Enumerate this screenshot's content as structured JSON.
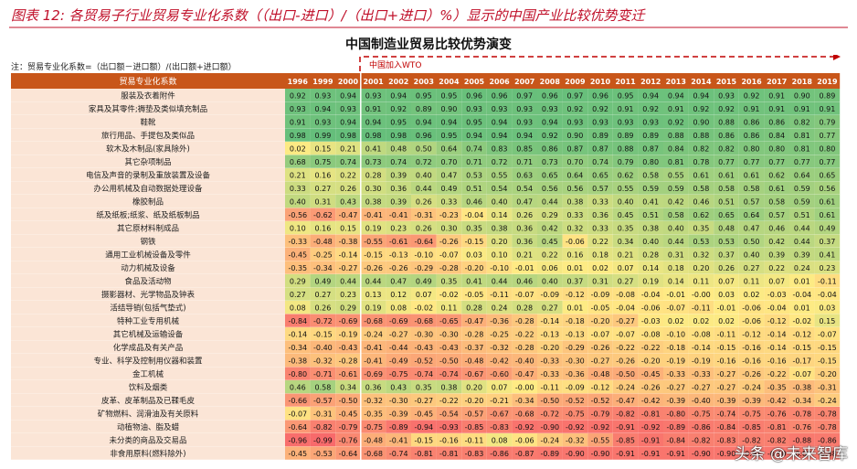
{
  "header": {
    "title": "图表 12: 各贸易子行业贸易专业化系数（（出口-进口）/（出口+进口）%）显示的中国产业比较优势变迁",
    "title_color": "#c0102a"
  },
  "chart_data": {
    "type": "heatmap",
    "title": "中国制造业贸易比较优势演变",
    "note": "注：贸易专业化系数=（出口额－进口额）/(出口额+进口额）",
    "annotation": "中国加入WTO",
    "row_header": "贸易专业化系数",
    "years": [
      "1996",
      "1999",
      "2000",
      "2001",
      "2002",
      "2003",
      "2004",
      "2005",
      "2006",
      "2007",
      "2008",
      "2009",
      "2010",
      "2011",
      "2012",
      "2013",
      "2014",
      "2015",
      "2016",
      "2017",
      "2018",
      "2019"
    ],
    "colors": {
      "low": "#f8696b",
      "mid": "#ffeb84",
      "high": "#63be7b",
      "header_bg": "#c8561a"
    },
    "rows": [
      {
        "name": "服装及衣着附件",
        "values": [
          "0.92",
          "0.93",
          "0.94",
          "0.93",
          "0.94",
          "0.95",
          "0.95",
          "0.96",
          "0.96",
          "0.97",
          "0.96",
          "0.97",
          "0.96",
          "0.95",
          "0.94",
          "0.94",
          "0.94",
          "0.93",
          "0.92",
          "0.91",
          "0.90",
          "0.89"
        ]
      },
      {
        "name": "家具及其零件;褥垫及类似填充制品",
        "values": [
          "0.93",
          "0.94",
          "0.93",
          "0.91",
          "0.92",
          "0.89",
          "0.90",
          "0.93",
          "0.93",
          "0.93",
          "0.93",
          "0.92",
          "0.92",
          "0.91",
          "0.92",
          "0.91",
          "0.92",
          "0.92",
          "0.91",
          "0.91",
          "0.91",
          "0.91"
        ]
      },
      {
        "name": "鞋靴",
        "values": [
          "0.91",
          "0.93",
          "0.94",
          "0.94",
          "0.95",
          "0.94",
          "0.94",
          "0.95",
          "0.94",
          "0.93",
          "0.94",
          "0.93",
          "0.93",
          "0.93",
          "0.93",
          "0.92",
          "0.90",
          "0.88",
          "0.86",
          "0.86",
          "0.82",
          "0.79"
        ]
      },
      {
        "name": "旅行用品、手提包及类似品",
        "values": [
          "0.98",
          "0.99",
          "0.98",
          "0.98",
          "0.98",
          "0.96",
          "0.95",
          "0.94",
          "0.94",
          "0.94",
          "0.92",
          "0.90",
          "0.89",
          "0.89",
          "0.89",
          "0.88",
          "0.88",
          "0.86",
          "0.86",
          "0.84",
          "0.81",
          "0.77"
        ]
      },
      {
        "name": "软木及木制品(家具除外)",
        "values": [
          "0.02",
          "0.15",
          "0.21",
          "0.41",
          "0.48",
          "0.50",
          "0.64",
          "0.74",
          "0.83",
          "0.85",
          "0.86",
          "0.87",
          "0.87",
          "0.88",
          "0.87",
          "0.84",
          "0.82",
          "0.82",
          "0.80",
          "0.80",
          "0.81",
          "0.80"
        ]
      },
      {
        "name": "其它杂项制品",
        "values": [
          "0.68",
          "0.75",
          "0.74",
          "0.73",
          "0.74",
          "0.72",
          "0.70",
          "0.71",
          "0.72",
          "0.71",
          "0.73",
          "0.70",
          "0.74",
          "0.79",
          "0.80",
          "0.81",
          "0.78",
          "0.77",
          "0.77",
          "0.77",
          "0.77",
          "0.77"
        ]
      },
      {
        "name": "电信及声音的录制及重放装置及设备",
        "values": [
          "0.21",
          "0.16",
          "0.22",
          "0.28",
          "0.39",
          "0.40",
          "0.47",
          "0.53",
          "0.55",
          "0.63",
          "0.65",
          "0.64",
          "0.65",
          "0.62",
          "0.58",
          "0.55",
          "0.61",
          "0.61",
          "0.61",
          "0.62",
          "0.64",
          "0.65"
        ]
      },
      {
        "name": "办公用机械及自动数据处理设备",
        "values": [
          "0.33",
          "0.27",
          "0.26",
          "0.30",
          "0.36",
          "0.44",
          "0.49",
          "0.51",
          "0.54",
          "0.54",
          "0.56",
          "0.56",
          "0.57",
          "0.55",
          "0.59",
          "0.59",
          "0.58",
          "0.58",
          "0.58",
          "0.61",
          "0.59",
          "0.56"
        ]
      },
      {
        "name": "橡胶制品",
        "values": [
          "0.40",
          "0.31",
          "0.43",
          "0.38",
          "0.39",
          "0.26",
          "0.33",
          "0.46",
          "0.40",
          "0.47",
          "0.44",
          "0.38",
          "0.33",
          "0.40",
          "0.41",
          "0.42",
          "0.46",
          "0.51",
          "0.57",
          "0.58",
          "0.59",
          "0.61"
        ]
      },
      {
        "name": "纸及纸板;纸浆、纸及纸板制品",
        "values": [
          "-0.56",
          "-0.62",
          "-0.47",
          "-0.41",
          "-0.41",
          "-0.31",
          "-0.23",
          "-0.04",
          "0.14",
          "0.26",
          "0.29",
          "0.33",
          "0.36",
          "0.45",
          "0.51",
          "0.58",
          "0.62",
          "0.65",
          "0.64",
          "0.57",
          "0.51",
          "0.61"
        ]
      },
      {
        "name": "其它原材料制成品",
        "values": [
          "0.10",
          "0.16",
          "0.15",
          "0.19",
          "0.23",
          "0.26",
          "0.30",
          "0.35",
          "0.38",
          "0.36",
          "0.42",
          "0.32",
          "0.33",
          "0.35",
          "0.38",
          "0.40",
          "0.35",
          "0.48",
          "0.47",
          "0.46",
          "0.44",
          "0.49"
        ]
      },
      {
        "name": "钢铁",
        "values": [
          "-0.33",
          "-0.48",
          "-0.38",
          "-0.55",
          "-0.61",
          "-0.64",
          "-0.26",
          "-0.15",
          "0.20",
          "0.36",
          "0.45",
          "-0.06",
          "0.22",
          "0.34",
          "0.40",
          "0.44",
          "0.53",
          "0.53",
          "0.50",
          "0.42",
          "0.44",
          "0.37"
        ]
      },
      {
        "name": "通用工业机械设备及零件",
        "values": [
          "-0.45",
          "-0.25",
          "-0.14",
          "-0.15",
          "-0.13",
          "-0.10",
          "-0.07",
          "0.03",
          "0.10",
          "0.21",
          "0.22",
          "0.16",
          "0.18",
          "0.21",
          "0.28",
          "0.31",
          "0.32",
          "0.37",
          "0.40",
          "0.39",
          "0.39",
          "0.41"
        ]
      },
      {
        "name": "动力机械及设备",
        "values": [
          "-0.35",
          "-0.34",
          "-0.27",
          "-0.26",
          "-0.26",
          "-0.29",
          "-0.28",
          "-0.20",
          "-0.10",
          "-0.01",
          "0.06",
          "0.01",
          "0.02",
          "0.07",
          "0.14",
          "0.18",
          "0.20",
          "0.26",
          "0.27",
          "0.22",
          "0.24",
          "0.23"
        ]
      },
      {
        "name": "食品及活动物",
        "values": [
          "0.29",
          "0.49",
          "0.44",
          "0.44",
          "0.47",
          "0.49",
          "0.35",
          "0.41",
          "0.44",
          "0.46",
          "0.40",
          "0.37",
          "0.31",
          "0.27",
          "0.19",
          "0.14",
          "0.11",
          "0.07",
          "0.11",
          "0.07",
          "0.01",
          "-0.11"
        ]
      },
      {
        "name": "摄影器材、光学物品及钟表",
        "values": [
          "0.27",
          "0.27",
          "0.23",
          "0.13",
          "0.12",
          "0.07",
          "-0.02",
          "-0.05",
          "-0.11",
          "-0.07",
          "-0.09",
          "-0.12",
          "-0.09",
          "-0.08",
          "-0.04",
          "-0.01",
          "-0.00",
          "0.03",
          "0.02",
          "-0.03",
          "-0.04",
          "-0.04"
        ]
      },
      {
        "name": "活结导销(包括气垫式)",
        "values": [
          "0.08",
          "0.26",
          "0.29",
          "0.19",
          "0.08",
          "-0.02",
          "0.11",
          "0.28",
          "0.24",
          "0.28",
          "0.27",
          "0.01",
          "-0.05",
          "-0.04",
          "-0.06",
          "-0.07",
          "-0.11",
          "-0.01",
          "-0.06",
          "-0.04",
          "0.01",
          "0.03"
        ]
      },
      {
        "name": "特种工业专用机械",
        "values": [
          "-0.84",
          "-0.72",
          "-0.69",
          "-0.68",
          "-0.69",
          "-0.68",
          "-0.65",
          "-0.47",
          "-0.36",
          "-0.28",
          "-0.14",
          "-0.18",
          "-0.20",
          "-0.27",
          "-0.03",
          "0.02",
          "0.02",
          "0.02",
          "-0.06",
          "-0.12",
          "-0.02",
          "0.15"
        ]
      },
      {
        "name": "其它机械及运输设备",
        "values": [
          "-0.14",
          "-0.15",
          "-0.19",
          "-0.24",
          "-0.27",
          "-0.30",
          "-0.30",
          "-0.28",
          "-0.25",
          "-0.22",
          "-0.13",
          "-0.13",
          "-0.07",
          "-0.07",
          "-0.08",
          "-0.10",
          "-0.08",
          "-0.11",
          "-0.12",
          "-0.14",
          "-0.12",
          "-0.07"
        ]
      },
      {
        "name": "化学成品及有关产品",
        "values": [
          "-0.34",
          "-0.40",
          "-0.43",
          "-0.41",
          "-0.44",
          "-0.43",
          "-0.43",
          "-0.37",
          "-0.32",
          "-0.28",
          "-0.20",
          "-0.29",
          "-0.26",
          "-0.22",
          "-0.22",
          "-0.18",
          "-0.14",
          "-0.15",
          "-0.16",
          "-0.14",
          "-0.15",
          "-0.15"
        ]
      },
      {
        "name": "专业、科学及控制用仪器和装置",
        "values": [
          "-0.38",
          "-0.32",
          "-0.28",
          "-0.41",
          "-0.49",
          "-0.52",
          "-0.50",
          "-0.48",
          "-0.42",
          "-0.40",
          "-0.33",
          "-0.30",
          "-0.27",
          "-0.26",
          "-0.20",
          "-0.19",
          "-0.19",
          "-0.16",
          "-0.16",
          "-0.16",
          "-0.17",
          "-0.15"
        ]
      },
      {
        "name": "金工机械",
        "values": [
          "-0.80",
          "-0.71",
          "-0.61",
          "-0.69",
          "-0.75",
          "-0.74",
          "-0.74",
          "-0.67",
          "-0.60",
          "-0.47",
          "-0.33",
          "-0.36",
          "-0.48",
          "-0.50",
          "-0.45",
          "-0.33",
          "-0.33",
          "-0.27",
          "-0.26",
          "-0.22",
          "-0.07",
          "-0.20"
        ]
      },
      {
        "name": "饮料及烟类",
        "values": [
          "0.46",
          "0.58",
          "0.34",
          "0.36",
          "0.43",
          "0.35",
          "0.38",
          "0.20",
          "0.07",
          "-0.00",
          "-0.11",
          "-0.09",
          "-0.12",
          "-0.24",
          "-0.26",
          "-0.27",
          "-0.27",
          "-0.27",
          "-0.24",
          "-0.35",
          "-0.38",
          "-0.31"
        ]
      },
      {
        "name": "皮革、皮革制品及已鞣毛皮",
        "values": [
          "-0.66",
          "-0.57",
          "-0.50",
          "-0.32",
          "-0.30",
          "-0.27",
          "-0.22",
          "-0.20",
          "-0.21",
          "-0.34",
          "-0.50",
          "-0.52",
          "-0.52",
          "-0.47",
          "-0.42",
          "-0.39",
          "-0.40",
          "-0.39",
          "-0.39",
          "-0.42",
          "-0.34",
          "-0.24"
        ]
      },
      {
        "name": "矿物燃料、润滑油及有关原料",
        "values": [
          "-0.07",
          "-0.31",
          "-0.45",
          "-0.35",
          "-0.39",
          "-0.45",
          "-0.54",
          "-0.57",
          "-0.67",
          "-0.68",
          "-0.72",
          "-0.75",
          "-0.79",
          "-0.82",
          "-0.81",
          "-0.80",
          "-0.75",
          "-0.74",
          "-0.75",
          "-0.76",
          "-0.78",
          "-0.78"
        ]
      },
      {
        "name": "动植物油、脂及蜡",
        "values": [
          "-0.64",
          "-0.82",
          "-0.79",
          "-0.75",
          "-0.89",
          "-0.94",
          "-0.93",
          "-0.85",
          "-0.83",
          "-0.92",
          "-0.90",
          "-0.92",
          "-0.92",
          "-0.91",
          "-0.92",
          "-0.89",
          "-0.86",
          "-0.84",
          "-0.85",
          "-0.81",
          "-0.76",
          "-0.78"
        ]
      },
      {
        "name": "未分类的商品及交易品",
        "values": [
          "-0.96",
          "-0.99",
          "-0.76",
          "-0.48",
          "-0.41",
          "-0.15",
          "-0.16",
          "-0.11",
          "0.08",
          "-0.06",
          "-0.24",
          "-0.32",
          "-0.55",
          "-0.85",
          "-0.91",
          "-0.84",
          "-0.82",
          "-0.83",
          "-0.82",
          "-0.82",
          "-0.88",
          "-0.86"
        ]
      },
      {
        "name": "非食用原料(燃料除外)",
        "values": [
          "-0.45",
          "-0.53",
          "-0.64",
          "-0.68",
          "-0.74",
          "-0.81",
          "-0.81",
          "-0.83",
          "-0.86",
          "-0.87",
          "-0.89",
          "-0.90",
          "-0.90",
          "-0.91",
          "-0.91",
          "-0.91",
          "-0.90",
          "-0.90",
          "-0.91",
          "-0.90",
          "-0.89",
          "-0.88"
        ]
      }
    ]
  },
  "watermark": "头条 @未来智库"
}
